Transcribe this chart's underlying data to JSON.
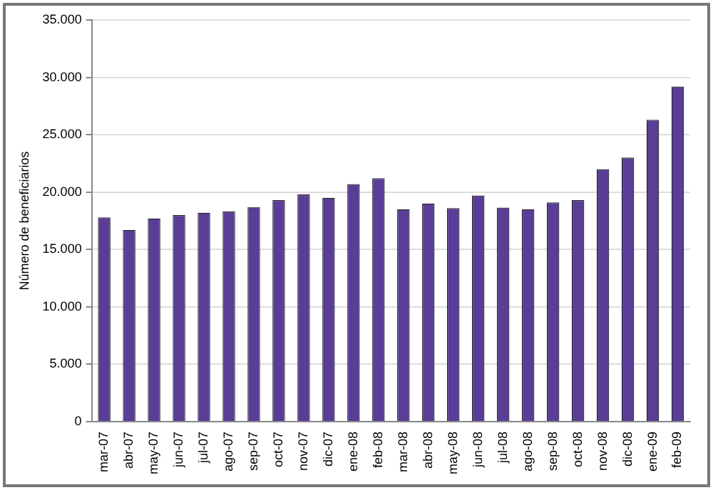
{
  "chart_data": {
    "type": "bar",
    "ylabel": "Número de beneficiarios",
    "categories": [
      "mar-07",
      "abr-07",
      "may-07",
      "jun-07",
      "jul-07",
      "ago-07",
      "sep-07",
      "oct-07",
      "nov-07",
      "dic-07",
      "ene-08",
      "feb-08",
      "mar-08",
      "abr-08",
      "may-08",
      "jun-08",
      "jul-08",
      "ago-08",
      "sep-08",
      "oct-08",
      "nov-08",
      "dic-08",
      "ene-09",
      "feb-09"
    ],
    "values": [
      17800,
      16700,
      17700,
      18000,
      18200,
      18300,
      18700,
      19300,
      19800,
      19500,
      20700,
      21200,
      18500,
      19000,
      18600,
      19700,
      18650,
      18500,
      19100,
      19300,
      22000,
      23000,
      26300,
      29200
    ],
    "color": "#5a3d96",
    "ylim": [
      0,
      35000
    ],
    "yticks": [
      {
        "value": 0,
        "label": "0"
      },
      {
        "value": 5000,
        "label": "5.000"
      },
      {
        "value": 10000,
        "label": "10.000"
      },
      {
        "value": 15000,
        "label": "15.000"
      },
      {
        "value": 20000,
        "label": "20.000"
      },
      {
        "value": 25000,
        "label": "25.000"
      },
      {
        "value": 30000,
        "label": "30.000"
      },
      {
        "value": 35000,
        "label": "35.000"
      }
    ],
    "grid": "y"
  }
}
